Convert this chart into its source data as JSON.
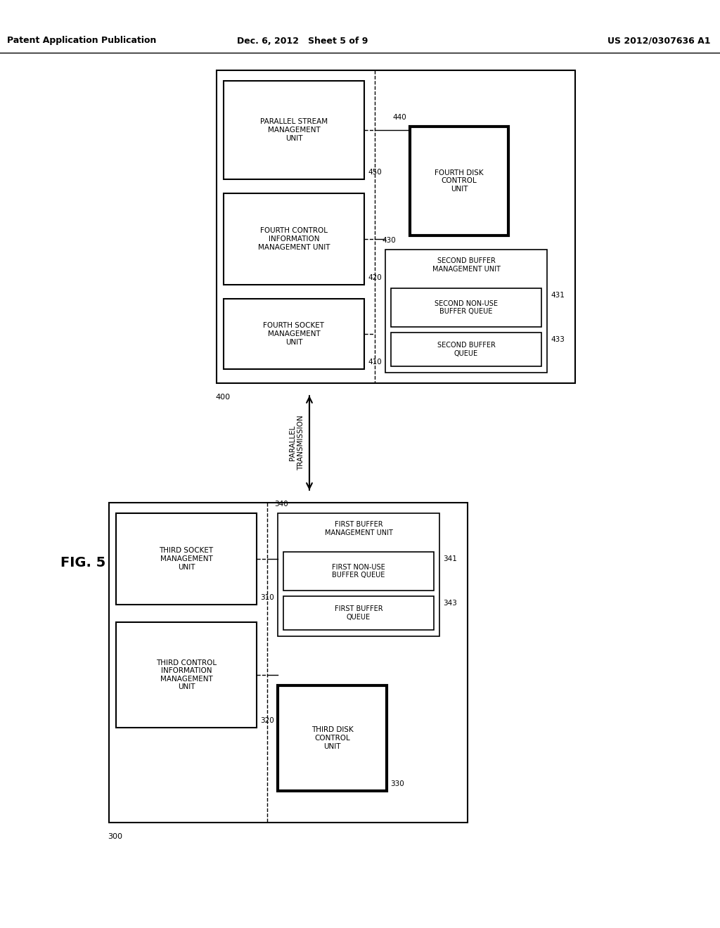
{
  "bg_color": "#ffffff",
  "title_left": "Patent Application Publication",
  "title_center": "Dec. 6, 2012   Sheet 5 of 9",
  "title_right": "US 2012/0307636 A1",
  "fig_label": "FIG. 5"
}
